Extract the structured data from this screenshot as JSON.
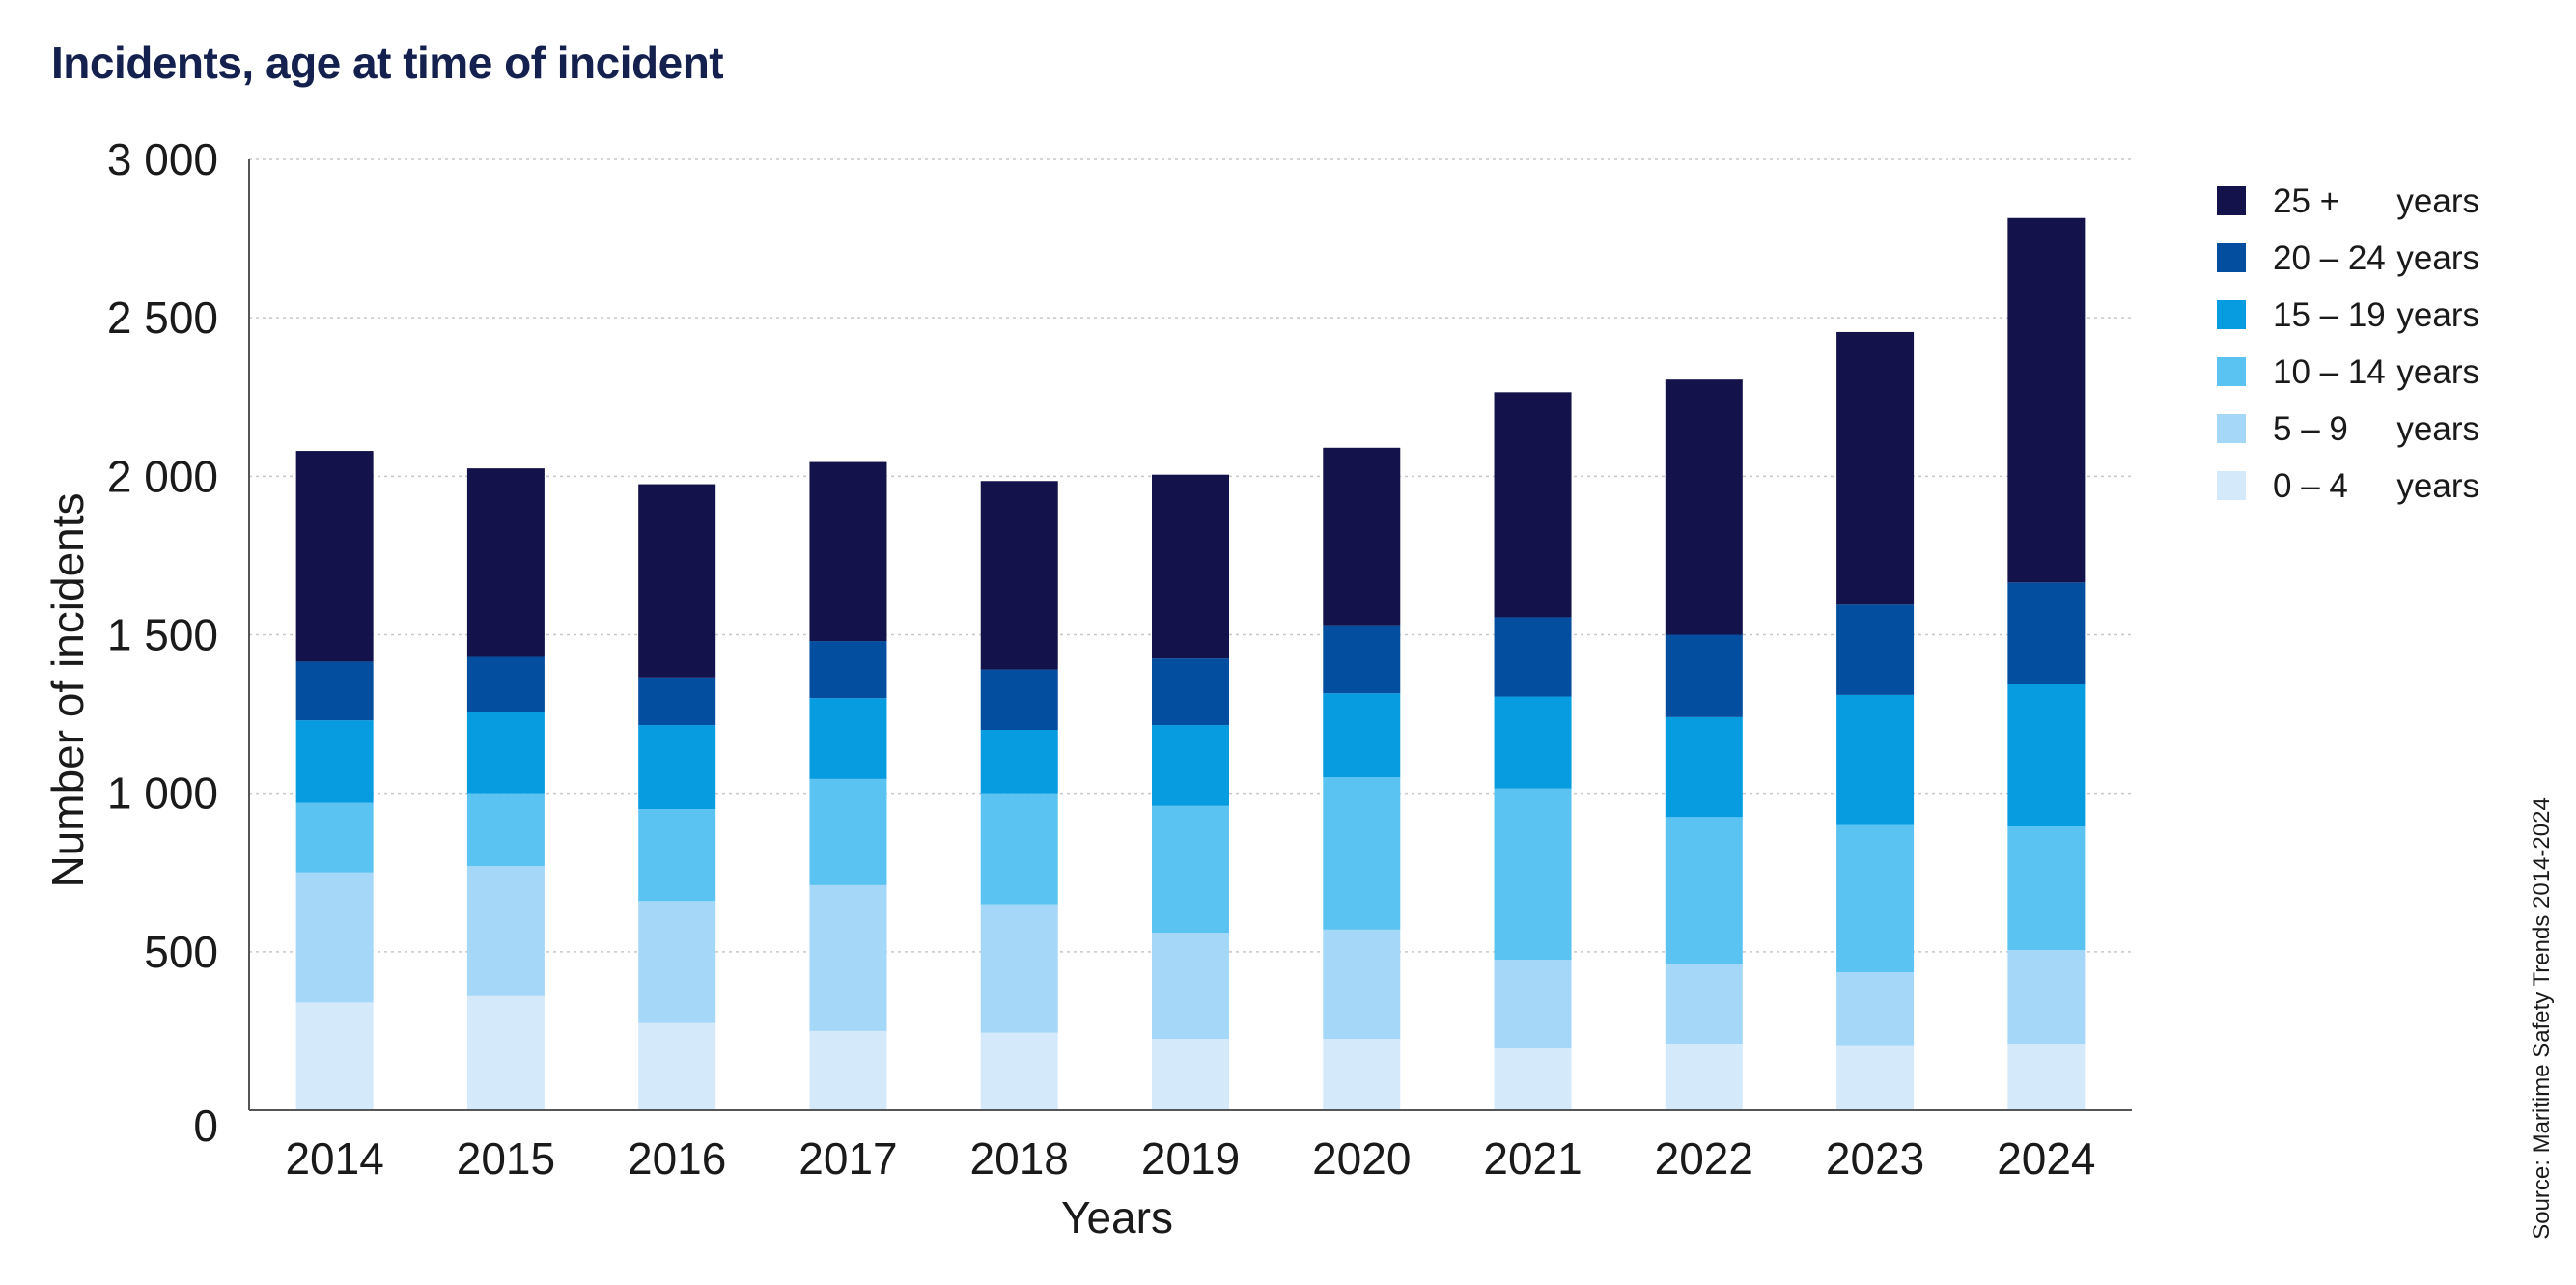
{
  "chart_data": {
    "type": "bar",
    "stacked": true,
    "title": "Incidents, age at time of incident",
    "xlabel": "Years",
    "ylabel": "Number of incidents",
    "ylim": [
      0,
      3000
    ],
    "yticks": [
      0,
      500,
      1000,
      1500,
      2000,
      2500,
      3000
    ],
    "ytick_labels": [
      "0",
      "500",
      "1 000",
      "1 500",
      "2 000",
      "2 500",
      "3 000"
    ],
    "grid": true,
    "legend_position": "right",
    "source": "Source: Maritime Safety Trends 2014-2024",
    "categories": [
      "2014",
      "2015",
      "2016",
      "2017",
      "2018",
      "2019",
      "2020",
      "2021",
      "2022",
      "2023",
      "2024"
    ],
    "series": [
      {
        "name": "0 – 4",
        "unit": "years",
        "color": "#d4eafb",
        "values": [
          340,
          360,
          275,
          250,
          245,
          225,
          225,
          195,
          210,
          205,
          210
        ]
      },
      {
        "name": "5 – 9",
        "unit": "years",
        "color": "#a5d7f8",
        "values": [
          410,
          410,
          385,
          460,
          405,
          335,
          345,
          280,
          250,
          230,
          295
        ]
      },
      {
        "name": "10 – 14",
        "unit": "years",
        "color": "#5bc3f1",
        "values": [
          220,
          230,
          290,
          335,
          350,
          400,
          480,
          540,
          465,
          465,
          390
        ]
      },
      {
        "name": "15 – 19",
        "unit": "years",
        "color": "#079be0",
        "values": [
          260,
          255,
          265,
          255,
          200,
          255,
          265,
          290,
          315,
          410,
          450
        ]
      },
      {
        "name": "20 – 24",
        "unit": "years",
        "color": "#034e9e",
        "values": [
          185,
          175,
          150,
          180,
          190,
          210,
          215,
          250,
          260,
          285,
          320
        ]
      },
      {
        "name": "25 +",
        "unit": "years",
        "color": "#13124a",
        "values": [
          665,
          595,
          610,
          565,
          595,
          580,
          560,
          710,
          805,
          860,
          1150
        ]
      }
    ]
  }
}
